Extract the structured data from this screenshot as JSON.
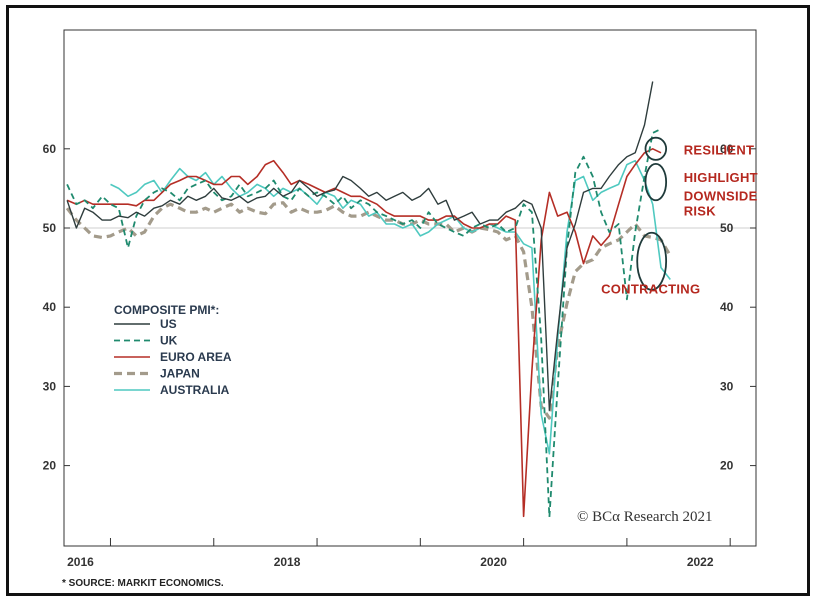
{
  "chart_data": {
    "type": "line",
    "legend_title": "COMPOSITE PMI*:",
    "legend_position": "left-middle",
    "source": "* SOURCE: MARKIT ECONOMICS.",
    "credit": "© BCα Research 2021",
    "grid": false,
    "reference_line": 50,
    "ylim": [
      10,
      75
    ],
    "xlim": [
      2015.55,
      2022.25
    ],
    "x_ticks": [
      2016,
      2018,
      2020,
      2022
    ],
    "x_tick_labels": [
      "2016",
      "2018",
      "2020",
      "2022"
    ],
    "y_ticks": [
      20,
      30,
      40,
      50,
      60
    ],
    "y_tick_labels": [
      "20",
      "30",
      "40",
      "50",
      "60"
    ],
    "annotations": [
      {
        "text": "RESILIENT",
        "x": 2021.55,
        "y": 59.3
      },
      {
        "text": "HIGHLIGHT",
        "x": 2021.55,
        "y": 55.8
      },
      {
        "text": "DOWNSIDE",
        "x": 2021.55,
        "y": 53.5
      },
      {
        "text": "RISK",
        "x": 2021.55,
        "y": 51.6
      },
      {
        "text": "CONTRACTING",
        "x": 2020.75,
        "y": 41.7
      }
    ],
    "circles": [
      {
        "x": 2021.28,
        "y": 60.0,
        "rx": 0.1,
        "ry": 1.4
      },
      {
        "x": 2021.28,
        "y": 55.8,
        "rx": 0.1,
        "ry": 2.3
      },
      {
        "x": 2021.24,
        "y": 45.8,
        "rx": 0.14,
        "ry": 3.6
      }
    ],
    "series": [
      {
        "name": "US",
        "color": "#2f3d3d",
        "dash": "",
        "width": 1.4,
        "x": [
          2015.58,
          2015.67,
          2015.75,
          2015.83,
          2015.92,
          2016.0,
          2016.08,
          2016.17,
          2016.25,
          2016.33,
          2016.42,
          2016.5,
          2016.58,
          2016.67,
          2016.75,
          2016.83,
          2016.92,
          2017.0,
          2017.08,
          2017.17,
          2017.25,
          2017.33,
          2017.42,
          2017.5,
          2017.58,
          2017.67,
          2017.75,
          2017.83,
          2017.92,
          2018.0,
          2018.08,
          2018.17,
          2018.25,
          2018.33,
          2018.42,
          2018.5,
          2018.58,
          2018.67,
          2018.75,
          2018.83,
          2018.92,
          2019.0,
          2019.08,
          2019.17,
          2019.25,
          2019.33,
          2019.42,
          2019.5,
          2019.58,
          2019.67,
          2019.75,
          2019.83,
          2019.92,
          2020.0,
          2020.08,
          2020.17,
          2020.25,
          2020.33,
          2020.42,
          2020.5,
          2020.58,
          2020.67,
          2020.75,
          2020.83,
          2020.92,
          2021.0,
          2021.08,
          2021.17,
          2021.25
        ],
        "y": [
          53.5,
          50.0,
          52.5,
          52.0,
          51.0,
          51.0,
          51.5,
          51.3,
          52.0,
          51.5,
          52.5,
          52.8,
          53.5,
          53.0,
          54.0,
          53.5,
          54.0,
          55.0,
          53.8,
          53.5,
          54.0,
          53.2,
          53.8,
          54.0,
          55.0,
          54.0,
          54.5,
          56.0,
          55.0,
          54.0,
          54.5,
          54.8,
          56.5,
          56.0,
          55.0,
          54.0,
          54.5,
          53.5,
          54.0,
          54.5,
          53.5,
          54.0,
          55.0,
          53.0,
          53.5,
          51.0,
          51.5,
          52.0,
          50.5,
          51.0,
          51.0,
          52.0,
          52.5,
          53.5,
          53.0,
          50.0,
          27.0,
          37.0,
          47.5,
          50.5,
          54.5,
          55.0,
          55.0,
          56.5,
          58.0,
          59.0,
          59.5,
          63.0,
          68.5
        ]
      },
      {
        "name": "UK",
        "color": "#1f8a6e",
        "dash": "6,4",
        "width": 1.8,
        "x": [
          2015.58,
          2015.67,
          2015.75,
          2015.83,
          2015.92,
          2016.0,
          2016.08,
          2016.17,
          2016.25,
          2016.33,
          2016.42,
          2016.5,
          2016.58,
          2016.67,
          2016.75,
          2016.83,
          2016.92,
          2017.0,
          2017.08,
          2017.17,
          2017.25,
          2017.33,
          2017.42,
          2017.5,
          2017.58,
          2017.67,
          2017.75,
          2017.83,
          2017.92,
          2018.0,
          2018.08,
          2018.17,
          2018.25,
          2018.33,
          2018.42,
          2018.5,
          2018.58,
          2018.67,
          2018.75,
          2018.83,
          2018.92,
          2019.0,
          2019.08,
          2019.17,
          2019.25,
          2019.33,
          2019.42,
          2019.5,
          2019.58,
          2019.67,
          2019.75,
          2019.83,
          2019.92,
          2020.0,
          2020.08,
          2020.17,
          2020.25,
          2020.33,
          2020.42,
          2020.5,
          2020.58,
          2020.67,
          2020.75,
          2020.83,
          2020.92,
          2021.0,
          2021.08,
          2021.17,
          2021.25,
          2021.33
        ],
        "y": [
          55.5,
          53.0,
          53.5,
          52.5,
          54.0,
          53.0,
          52.5,
          47.5,
          51.5,
          53.5,
          54.5,
          55.0,
          54.5,
          53.5,
          55.0,
          55.5,
          56.0,
          54.5,
          53.5,
          54.0,
          55.5,
          54.0,
          54.5,
          55.0,
          56.0,
          54.0,
          53.5,
          55.0,
          54.0,
          54.5,
          54.0,
          53.0,
          54.0,
          52.5,
          53.5,
          53.0,
          52.0,
          51.5,
          51.0,
          50.5,
          51.0,
          50.0,
          52.0,
          50.5,
          50.0,
          49.5,
          49.0,
          50.0,
          50.5,
          50.0,
          50.5,
          49.5,
          50.0,
          53.0,
          52.0,
          36.0,
          13.5,
          30.0,
          47.5,
          57.0,
          59.0,
          56.5,
          52.0,
          49.5,
          50.5,
          41.0,
          49.5,
          56.5,
          62.0,
          62.5
        ]
      },
      {
        "name": "EURO AREA",
        "color": "#b52e26",
        "dash": "",
        "width": 1.6,
        "x": [
          2015.58,
          2015.67,
          2015.75,
          2015.83,
          2015.92,
          2016.0,
          2016.08,
          2016.17,
          2016.25,
          2016.33,
          2016.42,
          2016.5,
          2016.58,
          2016.67,
          2016.75,
          2016.83,
          2016.92,
          2017.0,
          2017.08,
          2017.17,
          2017.25,
          2017.33,
          2017.42,
          2017.5,
          2017.58,
          2017.67,
          2017.75,
          2017.83,
          2017.92,
          2018.0,
          2018.08,
          2018.17,
          2018.25,
          2018.33,
          2018.42,
          2018.5,
          2018.58,
          2018.67,
          2018.75,
          2018.83,
          2018.92,
          2019.0,
          2019.08,
          2019.17,
          2019.25,
          2019.33,
          2019.42,
          2019.5,
          2019.58,
          2019.67,
          2019.75,
          2019.83,
          2019.92,
          2020.0,
          2020.08,
          2020.17,
          2020.25,
          2020.33,
          2020.42,
          2020.5,
          2020.58,
          2020.67,
          2020.75,
          2020.83,
          2020.92,
          2021.0,
          2021.08,
          2021.17,
          2021.25,
          2021.33
        ],
        "y": [
          53.5,
          53.0,
          53.5,
          53.0,
          53.0,
          53.0,
          53.0,
          53.0,
          52.8,
          53.5,
          53.5,
          54.5,
          55.5,
          56.0,
          56.5,
          56.5,
          56.0,
          55.5,
          55.5,
          56.5,
          56.5,
          55.5,
          56.5,
          58.0,
          58.5,
          57.0,
          55.5,
          56.0,
          55.5,
          55.0,
          54.5,
          55.0,
          54.5,
          54.0,
          54.0,
          53.5,
          53.0,
          52.0,
          51.5,
          51.5,
          51.5,
          51.5,
          51.0,
          51.0,
          51.5,
          51.5,
          50.5,
          50.0,
          50.0,
          50.5,
          50.5,
          51.5,
          51.0,
          13.6,
          32.0,
          48.5,
          54.5,
          51.5,
          52.0,
          49.5,
          45.5,
          49.0,
          47.8,
          49.0,
          53.0,
          56.5,
          58.0,
          59.5,
          60.0,
          59.5
        ]
      },
      {
        "name": "JAPAN",
        "color": "#a39b8b",
        "dash": "8,5",
        "width": 3.2,
        "x": [
          2015.58,
          2015.67,
          2015.75,
          2015.83,
          2015.92,
          2016.0,
          2016.08,
          2016.17,
          2016.25,
          2016.33,
          2016.42,
          2016.5,
          2016.58,
          2016.67,
          2016.75,
          2016.83,
          2016.92,
          2017.0,
          2017.08,
          2017.17,
          2017.25,
          2017.33,
          2017.42,
          2017.5,
          2017.58,
          2017.67,
          2017.75,
          2017.83,
          2017.92,
          2018.0,
          2018.08,
          2018.17,
          2018.25,
          2018.33,
          2018.42,
          2018.5,
          2018.58,
          2018.67,
          2018.75,
          2018.83,
          2018.92,
          2019.0,
          2019.08,
          2019.17,
          2019.25,
          2019.33,
          2019.42,
          2019.5,
          2019.58,
          2019.67,
          2019.75,
          2019.83,
          2019.92,
          2020.0,
          2020.08,
          2020.17,
          2020.25,
          2020.33,
          2020.42,
          2020.5,
          2020.58,
          2020.67,
          2020.75,
          2020.83,
          2020.92,
          2021.0,
          2021.08,
          2021.17,
          2021.25,
          2021.33,
          2021.42
        ],
        "y": [
          52.5,
          51.0,
          50.0,
          49.0,
          48.8,
          49.0,
          49.5,
          50.0,
          49.0,
          49.5,
          51.5,
          52.5,
          53.0,
          52.5,
          52.0,
          52.0,
          52.5,
          52.0,
          52.5,
          53.0,
          52.0,
          52.5,
          52.0,
          51.8,
          53.0,
          53.2,
          52.0,
          52.5,
          52.0,
          52.0,
          52.2,
          52.8,
          52.0,
          51.5,
          51.5,
          52.0,
          51.5,
          51.0,
          51.0,
          50.5,
          50.5,
          51.0,
          50.5,
          50.5,
          50.5,
          49.5,
          50.0,
          49.5,
          50.0,
          49.8,
          49.5,
          48.5,
          49.0,
          47.0,
          40.0,
          27.5,
          26.0,
          35.0,
          40.5,
          44.5,
          45.5,
          46.0,
          47.5,
          48.0,
          48.5,
          49.5,
          50.5,
          49.0,
          48.8,
          48.5,
          46.5
        ]
      },
      {
        "name": "AUSTRALIA",
        "color": "#4fc9c0",
        "dash": "",
        "width": 1.6,
        "x": [
          2016.0,
          2016.08,
          2016.17,
          2016.25,
          2016.33,
          2016.42,
          2016.5,
          2016.58,
          2016.67,
          2016.75,
          2016.83,
          2016.92,
          2017.0,
          2017.08,
          2017.17,
          2017.25,
          2017.33,
          2017.42,
          2017.5,
          2017.58,
          2017.67,
          2017.75,
          2017.83,
          2017.92,
          2018.0,
          2018.08,
          2018.17,
          2018.25,
          2018.33,
          2018.42,
          2018.5,
          2018.58,
          2018.67,
          2018.75,
          2018.83,
          2018.92,
          2019.0,
          2019.08,
          2019.17,
          2019.25,
          2019.33,
          2019.42,
          2019.5,
          2019.58,
          2019.67,
          2019.75,
          2019.83,
          2019.92,
          2020.0,
          2020.08,
          2020.17,
          2020.25,
          2020.33,
          2020.42,
          2020.5,
          2020.58,
          2020.67,
          2020.75,
          2020.83,
          2020.92,
          2021.0,
          2021.08,
          2021.17,
          2021.25,
          2021.33,
          2021.42
        ],
        "y": [
          55.5,
          55.0,
          54.0,
          54.5,
          55.5,
          56.0,
          54.5,
          56.0,
          57.5,
          56.5,
          56.0,
          57.0,
          55.5,
          56.5,
          55.0,
          54.0,
          54.5,
          55.5,
          55.0,
          54.0,
          55.0,
          54.5,
          55.0,
          54.0,
          53.0,
          54.5,
          54.0,
          52.5,
          53.5,
          53.0,
          51.5,
          52.0,
          50.5,
          50.5,
          50.0,
          50.5,
          49.0,
          49.5,
          50.5,
          51.0,
          51.5,
          50.0,
          49.5,
          50.0,
          50.5,
          50.0,
          49.5,
          49.5,
          48.0,
          47.5,
          26.5,
          21.5,
          36.0,
          49.5,
          56.0,
          56.5,
          53.5,
          54.5,
          55.0,
          55.5,
          58.0,
          58.5,
          56.0,
          53.0,
          45.0,
          43.5
        ]
      }
    ]
  }
}
